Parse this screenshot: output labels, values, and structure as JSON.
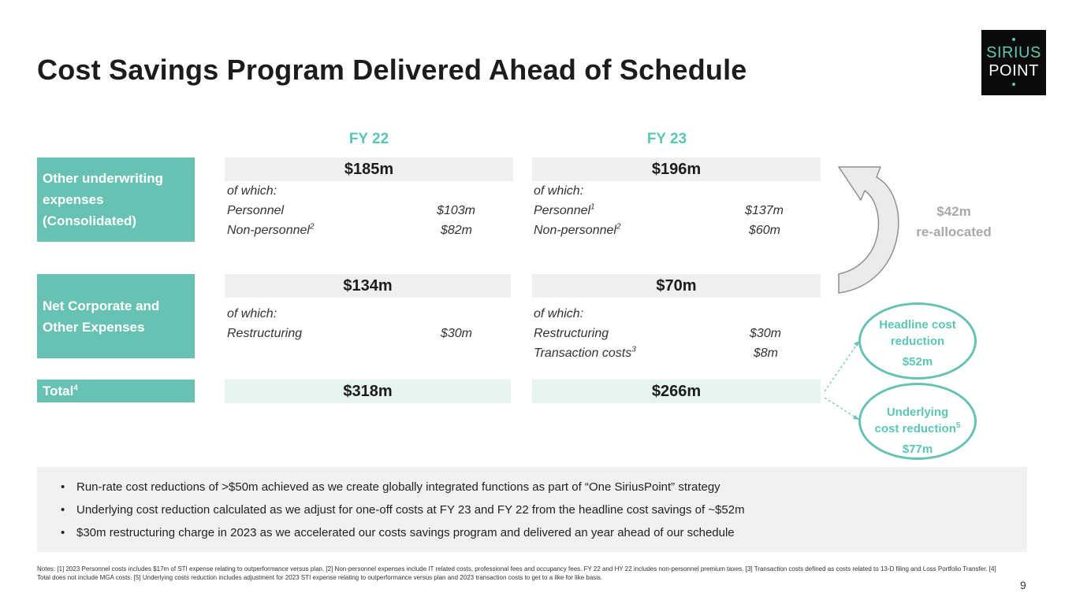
{
  "title": "Cost Savings Program Delivered Ahead of Schedule",
  "logo": {
    "line1": "SIRIUS",
    "line2": "POINT"
  },
  "columns": {
    "fy22": "FY 22",
    "fy23": "FY 23"
  },
  "rows": {
    "underwriting": {
      "label_lines": [
        "Other underwriting",
        "expenses",
        "(Consolidated)"
      ],
      "fy22": {
        "total": "$185m",
        "of_which": "of which:",
        "item1": "Personnel",
        "item1_value": "$103m",
        "item2": "Non-personnel",
        "item2_sup": "2",
        "item2_value": "$82m"
      },
      "fy23": {
        "total": "$196m",
        "of_which": "of which:",
        "item1": "Personnel",
        "item1_sup": "1",
        "item1_value": "$137m",
        "item2": "Non-personnel",
        "item2_sup": "2",
        "item2_value": "$60m"
      }
    },
    "corporate": {
      "label_lines": [
        "Net Corporate and",
        "Other Expenses"
      ],
      "fy22": {
        "total": "$134m",
        "of_which": "of which:",
        "item1": "Restructuring",
        "item1_value": "$30m"
      },
      "fy23": {
        "total": "$70m",
        "of_which": "of which:",
        "item1": "Restructuring",
        "item1_value": "$30m",
        "item2": "Transaction costs",
        "item2_sup": "3",
        "item2_value": "$8m"
      }
    },
    "total": {
      "label": "Total",
      "label_sup": "4",
      "fy22": "$318m",
      "fy23": "$266m"
    }
  },
  "reallocation": {
    "amount": "$42m",
    "text": "re-allocated"
  },
  "headline_oval": {
    "line1": "Headline cost",
    "line2": "reduction",
    "value": "$52m"
  },
  "underlying_oval": {
    "line1": "Underlying",
    "line2": "cost reduction",
    "line2_sup": "5",
    "value": "$77m"
  },
  "bullets": [
    "Run-rate cost reductions of >$50m achieved as we create globally integrated functions as part of “One SiriusPoint” strategy",
    "Underlying cost reduction calculated as we adjust for one-off costs at FY 23 and FY 22 from the headline cost savings of ~$52m",
    "$30m restructuring charge in 2023 as we accelerated our costs savings program and delivered an year ahead of our schedule"
  ],
  "notes": "Notes: [1] 2023 Personnel costs includes $17m of STI expense relating to outperformance versus plan. [2] Non-personnel expenses include IT related costs, professional fees and occupancy fees. FY 22 and HY 22 includes non-personnel premium taxes. [3] Transaction costs defined as costs related to 13-D filing and Loss Portfolio Transfer. [4] Total does not include MGA costs. [5] Underlying costs reduction includes adjustment for 2023 STI expense relating to outperformance versus plan and 2023 transaction costs to get to a like for like basis.",
  "page_number": "9",
  "colors": {
    "accent": "#68c2b4",
    "accent_text": "#5cc6b6",
    "bar_grey": "#efefef",
    "muted": "#a9a9a9"
  }
}
